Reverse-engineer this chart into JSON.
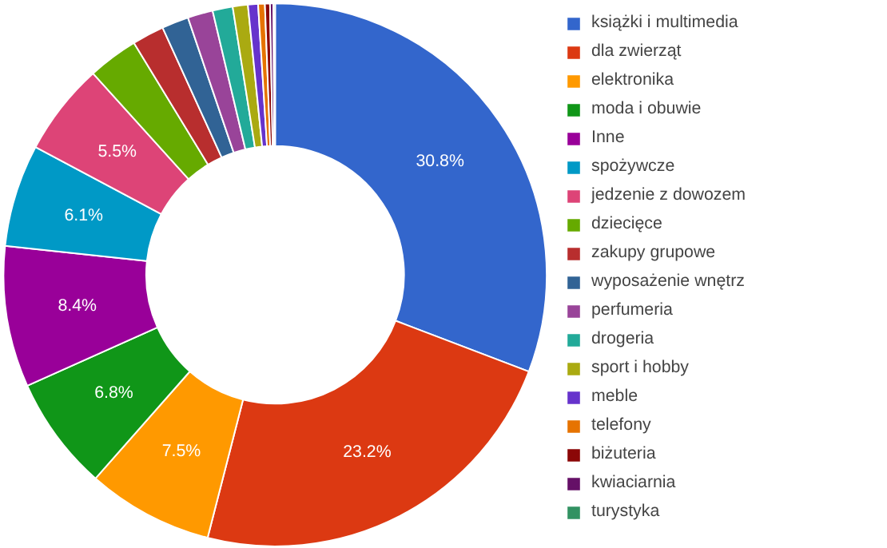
{
  "chart_data": {
    "type": "donut",
    "categories": [
      "książki i multimedia",
      "dla zwierząt",
      "elektronika",
      "moda i obuwie",
      "Inne",
      "spożywcze",
      "jedzenie z dowozem",
      "dziecięce",
      "zakupy grupowe",
      "wyposażenie wnętrz",
      "perfumeria",
      "drogeria",
      "sport i hobby",
      "meble",
      "telefony",
      "biżuteria",
      "kwiaciarnia",
      "turystyka"
    ],
    "values": [
      30.8,
      23.2,
      7.5,
      6.8,
      8.4,
      6.1,
      5.5,
      3.0,
      1.9,
      1.6,
      1.5,
      1.2,
      0.9,
      0.6,
      0.4,
      0.3,
      0.2,
      0.1
    ],
    "colors": [
      "#3366cc",
      "#dc3912",
      "#ff9900",
      "#109618",
      "#990099",
      "#0099c6",
      "#dd4477",
      "#66aa00",
      "#b82e2e",
      "#316395",
      "#994499",
      "#22aa99",
      "#aaaa11",
      "#6633cc",
      "#e67300",
      "#8b0707",
      "#651067",
      "#329262"
    ],
    "value_labels": [
      "30.8%",
      "23.2%",
      "7.5%",
      "6.8%",
      "8.4%",
      "6.1%",
      "5.5%",
      null,
      null,
      null,
      null,
      null,
      null,
      null,
      null,
      null,
      null,
      null
    ],
    "legend": "right"
  }
}
